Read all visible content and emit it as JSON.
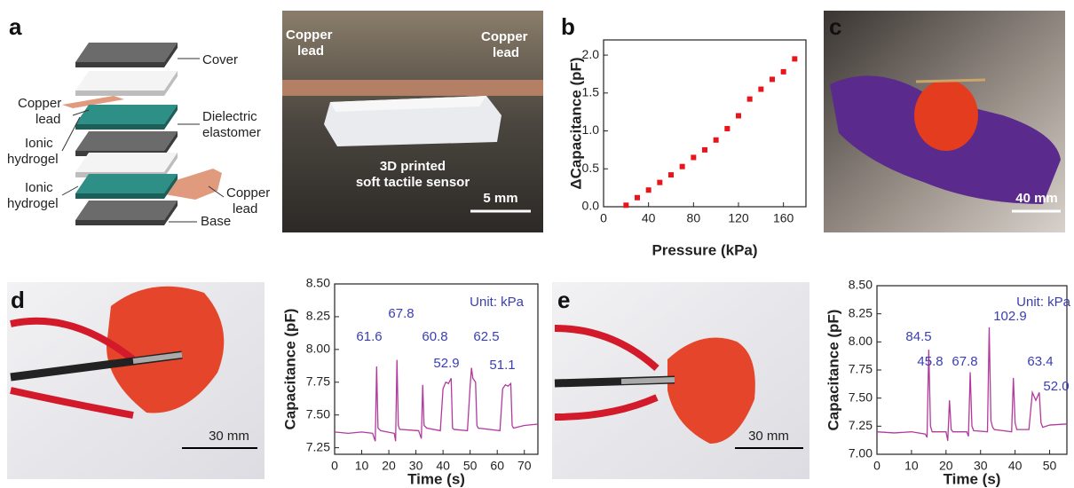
{
  "panel_letters": [
    "a",
    "b",
    "c",
    "d",
    "e"
  ],
  "schematic_labels": {
    "cover": "Cover",
    "copper_lead_top": [
      "Copper",
      "lead"
    ],
    "ionic_hydrogel_top": [
      "Ionic",
      "hydrogel"
    ],
    "dielectric": [
      "Dielectric",
      "elastomer"
    ],
    "ionic_hydrogel_bottom": [
      "Ionic",
      "hydrogel"
    ],
    "copper_lead_bottom": [
      "Copper",
      "lead"
    ],
    "base": "Base"
  },
  "photo_a": {
    "copper_left": [
      "Copper",
      "lead"
    ],
    "copper_right": [
      "Copper",
      "lead"
    ],
    "caption": [
      "3D printed",
      "soft tactile sensor"
    ],
    "scale": "5 mm"
  },
  "photo_c": {
    "scale": "40 mm"
  },
  "photo_d": {
    "scale": "30 mm"
  },
  "photo_e": {
    "scale": "30 mm"
  },
  "chart_data": [
    {
      "type": "scatter",
      "xlabel": "Pressure (kPa)",
      "ylabel": "ΔCapacitance (pF)",
      "color": "#e8161b",
      "x": [
        20,
        30,
        40,
        50,
        60,
        70,
        80,
        90,
        100,
        110,
        120,
        130,
        140,
        150,
        160,
        170
      ],
      "values": [
        0.02,
        0.12,
        0.22,
        0.32,
        0.42,
        0.53,
        0.65,
        0.75,
        0.88,
        1.03,
        1.2,
        1.42,
        1.55,
        1.68,
        1.78,
        1.95
      ],
      "xlim": [
        0,
        180
      ],
      "xticks": [
        0,
        40,
        80,
        120,
        160
      ],
      "ylim": [
        0,
        2.2
      ],
      "yticks": [
        {
          "value": 0,
          "label": "0.0"
        },
        0.5,
        {
          "value": 1,
          "label": "1.0"
        },
        1.5,
        {
          "value": 2,
          "label": "2.0"
        }
      ]
    },
    {
      "type": "line",
      "xlabel": "Time (s)",
      "ylabel": "Capacitance (pF)",
      "color": "#b23a9c",
      "annotation_color": "#3a3fb0",
      "unit_note": "Unit: kPa",
      "annotations": [
        "61.6",
        "67.8",
        "60.8",
        "52.9",
        "62.5",
        "51.1"
      ],
      "x": [
        0,
        5,
        10,
        14,
        15,
        15.5,
        16,
        17,
        22,
        22.5,
        23,
        23.5,
        24,
        31,
        32,
        32.5,
        33,
        34,
        39,
        40,
        41,
        42,
        43,
        43.5,
        44,
        49,
        50,
        50.5,
        51,
        52,
        52.5,
        53,
        61,
        62,
        63,
        64,
        65,
        65.5,
        66,
        70,
        75
      ],
      "values": [
        7.37,
        7.36,
        7.37,
        7.36,
        7.3,
        7.87,
        7.4,
        7.38,
        7.36,
        7.3,
        7.92,
        7.42,
        7.39,
        7.38,
        7.32,
        7.73,
        7.42,
        7.4,
        7.38,
        7.7,
        7.75,
        7.74,
        7.78,
        7.4,
        7.39,
        7.38,
        7.72,
        7.86,
        7.78,
        7.75,
        7.42,
        7.4,
        7.38,
        7.7,
        7.73,
        7.72,
        7.74,
        7.42,
        7.4,
        7.42,
        7.43
      ],
      "xlim": [
        0,
        75
      ],
      "xticks": [
        0,
        10,
        20,
        30,
        40,
        50,
        60,
        70
      ],
      "ylim": [
        7.2,
        8.5
      ],
      "yticks": [
        7.25,
        {
          "value": 7.5,
          "label": "7.50"
        },
        7.75,
        {
          "value": 8,
          "label": "8.00"
        },
        8.25,
        {
          "value": 8.5,
          "label": "8.50"
        }
      ]
    },
    {
      "type": "line",
      "xlabel": "Time (s)",
      "ylabel": "Capacitance (pF)",
      "color": "#b23a9c",
      "annotation_color": "#3a3fb0",
      "unit_note": "Unit: kPa",
      "annotations": [
        "84.5",
        "45.8",
        "67.8",
        "102.9",
        "63.4",
        "52.0"
      ],
      "x": [
        0,
        5,
        10,
        14,
        14.5,
        15,
        15.5,
        16,
        20,
        20.5,
        21,
        21.5,
        22,
        26,
        26.5,
        27,
        27.5,
        28,
        32,
        32.5,
        33,
        33.5,
        34,
        39,
        39.5,
        40,
        40.5,
        44,
        45,
        46,
        47,
        47.5,
        48,
        50,
        55
      ],
      "values": [
        7.2,
        7.19,
        7.2,
        7.18,
        7.15,
        7.93,
        7.25,
        7.2,
        7.2,
        7.12,
        7.48,
        7.22,
        7.2,
        7.2,
        7.16,
        7.73,
        7.25,
        7.21,
        7.2,
        8.13,
        7.3,
        7.24,
        7.22,
        7.2,
        7.68,
        7.28,
        7.22,
        7.22,
        7.55,
        7.48,
        7.55,
        7.28,
        7.24,
        7.26,
        7.27
      ],
      "xlim": [
        0,
        55
      ],
      "xticks": [
        0,
        10,
        20,
        30,
        40,
        50
      ],
      "ylim": [
        7,
        8.5
      ],
      "yticks": [
        {
          "value": 7,
          "label": "7.00"
        },
        7.25,
        {
          "value": 7.5,
          "label": "7.50"
        },
        7.75,
        {
          "value": 8,
          "label": "8.00"
        },
        8.25,
        {
          "value": 8.5,
          "label": "8.50"
        }
      ]
    }
  ]
}
